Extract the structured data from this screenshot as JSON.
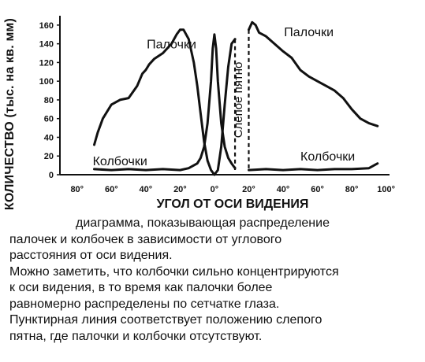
{
  "chart_data": {
    "type": "line",
    "xlabel": "УГОЛ ОТ ОСИ ВИДЕНИЯ",
    "ylabel": "КОЛИЧЕСТВО (тыс. на кв. мм)",
    "x_tick_labels": [
      "80°",
      "60°",
      "40°",
      "20°",
      "0°",
      "20°",
      "40°",
      "60°",
      "80°",
      "100°"
    ],
    "x_tick_values": [
      -80,
      -60,
      -40,
      -20,
      0,
      20,
      40,
      60,
      80,
      100
    ],
    "y_ticks": [
      0,
      20,
      40,
      60,
      80,
      100,
      120,
      140,
      160
    ],
    "xlim": [
      -90,
      102
    ],
    "ylim": [
      0,
      170
    ],
    "grid": false,
    "legend": "none",
    "blind_spot_label": "Слепое пятно",
    "blind_spot_range": [
      12,
      20
    ],
    "series": [
      {
        "name": "Палочки",
        "x": [
          -70,
          -68,
          -65,
          -60,
          -55,
          -50,
          -45,
          -42,
          -40,
          -38,
          -35,
          -30,
          -25,
          -22,
          -20,
          -18,
          -15,
          -12,
          -10,
          -8,
          -6,
          -4,
          -2,
          0,
          2,
          4,
          6,
          8,
          10,
          12
        ],
        "y": [
          32,
          45,
          60,
          75,
          80,
          82,
          95,
          108,
          112,
          118,
          124,
          130,
          140,
          150,
          155,
          155,
          145,
          120,
          95,
          65,
          35,
          15,
          5,
          0,
          5,
          30,
          75,
          115,
          140,
          145
        ]
      },
      {
        "name": "Палочки",
        "x": [
          20,
          22,
          24,
          26,
          30,
          35,
          40,
          45,
          50,
          55,
          60,
          65,
          70,
          75,
          80,
          85,
          90,
          95
        ],
        "y": [
          155,
          163,
          160,
          152,
          148,
          140,
          132,
          125,
          112,
          105,
          100,
          95,
          90,
          82,
          70,
          60,
          55,
          52
        ]
      },
      {
        "name": "Колбочки",
        "x": [
          -70,
          -60,
          -50,
          -40,
          -30,
          -20,
          -15,
          -10,
          -8,
          -6,
          -4,
          -2,
          -1,
          0,
          1,
          2,
          4,
          6,
          8,
          10,
          12
        ],
        "y": [
          6,
          5,
          6,
          5,
          6,
          5,
          7,
          12,
          18,
          30,
          55,
          100,
          135,
          150,
          135,
          100,
          55,
          30,
          18,
          12,
          7
        ]
      },
      {
        "name": "Колбочки",
        "x": [
          20,
          30,
          40,
          50,
          60,
          70,
          80,
          90,
          95
        ],
        "y": [
          5,
          6,
          5,
          6,
          5,
          6,
          6,
          7,
          12
        ]
      }
    ],
    "annotations": [
      {
        "text": "Палочки",
        "x": -25,
        "y": 135
      },
      {
        "text": "Колбочки",
        "x": -55,
        "y": 10
      },
      {
        "text": "Палочки",
        "x": 55,
        "y": 148
      },
      {
        "text": "Колбочки",
        "x": 66,
        "y": 15
      }
    ]
  },
  "caption": [
    "диаграмма, показывающая распределение",
    "палочек и колбочек в зависимости от углового",
    "расстояния от оси видения.",
    "Можно заметить, что колбочки сильно концентрируются",
    "к оси видения, в то время как палочки более",
    "равномерно распределены по сетчатке глаза.",
    "Пунктирная линия соответствует положению слепого",
    "пятна, где палочки и колбочки отсутствуют."
  ]
}
